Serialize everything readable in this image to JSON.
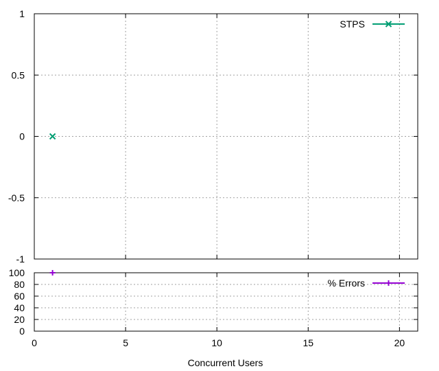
{
  "chart_data": [
    {
      "type": "scatter",
      "title": "",
      "xlabel": "",
      "ylabel": "",
      "xlim": [
        0,
        21
      ],
      "ylim": [
        -1,
        1
      ],
      "x_ticks": [
        0,
        5,
        10,
        15,
        20
      ],
      "y_ticks": [
        -1,
        -0.5,
        0,
        0.5,
        1
      ],
      "y_tick_labels": [
        "-1",
        "-0.5",
        "0",
        "0.5",
        "1"
      ],
      "grid": true,
      "legend_position": "top-right",
      "series": [
        {
          "name": "STPS",
          "color": "#009e73",
          "marker": "x",
          "x": [
            1
          ],
          "y": [
            0
          ]
        }
      ]
    },
    {
      "type": "scatter",
      "title": "",
      "xlabel": "Concurrent Users",
      "ylabel": "",
      "xlim": [
        0,
        21
      ],
      "ylim": [
        0,
        100
      ],
      "x_ticks": [
        0,
        5,
        10,
        15,
        20
      ],
      "x_tick_labels": [
        "0",
        "5",
        "10",
        "15",
        "20"
      ],
      "y_ticks": [
        0,
        20,
        40,
        60,
        80,
        100
      ],
      "y_tick_labels": [
        "0",
        "20",
        "40",
        "60",
        "80",
        "100"
      ],
      "grid": true,
      "legend_position": "top-right",
      "series": [
        {
          "name": "% Errors",
          "color": "#9400d3",
          "marker": "+",
          "x": [
            1
          ],
          "y": [
            100
          ]
        }
      ]
    }
  ]
}
